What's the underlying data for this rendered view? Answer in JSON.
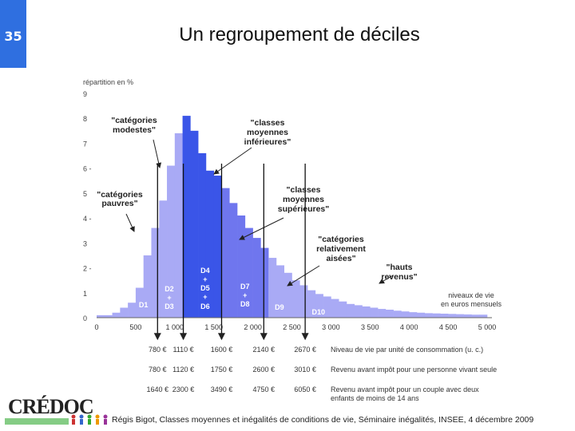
{
  "slide": {
    "number": "35",
    "title": "Un regroupement de déciles"
  },
  "footer": "Régis Bigot, Classes moyennes et inégalités de conditions de vie, Séminaire inégalités, INSEE, 4 décembre 2009",
  "logo": {
    "text": "CRÉDOC"
  },
  "colors": {
    "accent": "#2f6fe0",
    "light": "#a9aaf5",
    "dark": "#3a55e8",
    "mid": "#6f76ee"
  },
  "chart_data": {
    "type": "bar",
    "ylabel": "répartition en %",
    "xlabel": "niveaux de vie en euros mensuels",
    "xlim": [
      0,
      5000
    ],
    "ylim": [
      0,
      9
    ],
    "x_ticks": [
      "0",
      "500",
      "1 000",
      "1 500",
      "2 000",
      "2 500",
      "3 000",
      "3 500",
      "4 000",
      "4 500",
      "5 000"
    ],
    "y_ticks": [
      "0",
      "1",
      "2 -",
      "3",
      "4 -",
      "5",
      "6 -",
      "7",
      "8",
      "9"
    ],
    "bin_width": 100,
    "bins": [
      {
        "x": 0,
        "value": 0.1,
        "group": "light"
      },
      {
        "x": 100,
        "value": 0.1,
        "group": "light"
      },
      {
        "x": 200,
        "value": 0.2,
        "group": "light"
      },
      {
        "x": 300,
        "value": 0.4,
        "group": "light"
      },
      {
        "x": 400,
        "value": 0.6,
        "group": "light"
      },
      {
        "x": 500,
        "value": 1.2,
        "group": "light"
      },
      {
        "x": 600,
        "value": 2.5,
        "group": "light"
      },
      {
        "x": 700,
        "value": 3.6,
        "group": "light"
      },
      {
        "x": 800,
        "value": 4.7,
        "group": "light"
      },
      {
        "x": 900,
        "value": 6.1,
        "group": "light"
      },
      {
        "x": 1000,
        "value": 7.4,
        "group": "light"
      },
      {
        "x": 1100,
        "value": 8.1,
        "group": "dark"
      },
      {
        "x": 1200,
        "value": 7.5,
        "group": "dark"
      },
      {
        "x": 1300,
        "value": 6.6,
        "group": "dark"
      },
      {
        "x": 1400,
        "value": 5.9,
        "group": "dark"
      },
      {
        "x": 1500,
        "value": 5.7,
        "group": "dark"
      },
      {
        "x": 1600,
        "value": 5.2,
        "group": "mid"
      },
      {
        "x": 1700,
        "value": 4.6,
        "group": "mid"
      },
      {
        "x": 1800,
        "value": 4.1,
        "group": "mid"
      },
      {
        "x": 1900,
        "value": 3.6,
        "group": "mid"
      },
      {
        "x": 2000,
        "value": 3.2,
        "group": "mid"
      },
      {
        "x": 2100,
        "value": 2.8,
        "group": "mid"
      },
      {
        "x": 2200,
        "value": 2.4,
        "group": "light"
      },
      {
        "x": 2300,
        "value": 2.1,
        "group": "light"
      },
      {
        "x": 2400,
        "value": 1.8,
        "group": "light"
      },
      {
        "x": 2500,
        "value": 1.5,
        "group": "light"
      },
      {
        "x": 2600,
        "value": 1.3,
        "group": "light"
      },
      {
        "x": 2700,
        "value": 1.1,
        "group": "light"
      },
      {
        "x": 2800,
        "value": 0.95,
        "group": "light"
      },
      {
        "x": 2900,
        "value": 0.85,
        "group": "light"
      },
      {
        "x": 3000,
        "value": 0.75,
        "group": "light"
      },
      {
        "x": 3100,
        "value": 0.65,
        "group": "light"
      },
      {
        "x": 3200,
        "value": 0.55,
        "group": "light"
      },
      {
        "x": 3300,
        "value": 0.5,
        "group": "light"
      },
      {
        "x": 3400,
        "value": 0.45,
        "group": "light"
      },
      {
        "x": 3500,
        "value": 0.4,
        "group": "light"
      },
      {
        "x": 3600,
        "value": 0.35,
        "group": "light"
      },
      {
        "x": 3700,
        "value": 0.32,
        "group": "light"
      },
      {
        "x": 3800,
        "value": 0.28,
        "group": "light"
      },
      {
        "x": 3900,
        "value": 0.25,
        "group": "light"
      },
      {
        "x": 4000,
        "value": 0.22,
        "group": "light"
      },
      {
        "x": 4100,
        "value": 0.2,
        "group": "light"
      },
      {
        "x": 4200,
        "value": 0.18,
        "group": "light"
      },
      {
        "x": 4300,
        "value": 0.17,
        "group": "light"
      },
      {
        "x": 4400,
        "value": 0.16,
        "group": "light"
      },
      {
        "x": 4500,
        "value": 0.15,
        "group": "light"
      },
      {
        "x": 4600,
        "value": 0.14,
        "group": "light"
      },
      {
        "x": 4700,
        "value": 0.13,
        "group": "light"
      },
      {
        "x": 4800,
        "value": 0.12,
        "group": "light"
      },
      {
        "x": 4900,
        "value": 0.12,
        "group": "light"
      }
    ],
    "decile_labels": [
      {
        "lines": [
          "D1"
        ],
        "x": 620,
        "color": "#ffffff"
      },
      {
        "lines": [
          "D2",
          "+",
          "D3"
        ],
        "x": 930,
        "color": "#ffffff"
      },
      {
        "lines": [
          "D4",
          "+",
          "D5",
          "+",
          "D6"
        ],
        "x": 1390,
        "color": "#ffffff"
      },
      {
        "lines": [
          "D7",
          "+",
          "D8"
        ],
        "x": 1900,
        "color": "#ffffff"
      },
      {
        "lines": [
          "D9"
        ],
        "x": 2340,
        "color": "#ffffff"
      },
      {
        "lines": [
          "D10"
        ],
        "x": 2840,
        "color": "#ffffff"
      }
    ],
    "annotations": [
      {
        "lines": [
          "\"catégories",
          "pauvres\""
        ]
      },
      {
        "lines": [
          "\"catégories",
          "modestes\""
        ]
      },
      {
        "lines": [
          "\"classes",
          "moyennes",
          "inférieures\""
        ]
      },
      {
        "lines": [
          "\"classes",
          "moyennes",
          "supérieures\""
        ]
      },
      {
        "lines": [
          "\"catégories",
          "relativement",
          "aisées\""
        ]
      },
      {
        "lines": [
          "\"hauts",
          "revenus\""
        ]
      }
    ],
    "thresholds": [
      {
        "x": 780,
        "cut_values": [
          "780 €",
          "780 €",
          "1640 €"
        ]
      },
      {
        "x": 1110,
        "cut_values": [
          "1110 €",
          "1120 €",
          "2300 €"
        ]
      },
      {
        "x": 1600,
        "cut_values": [
          "1600 €",
          "1750 €",
          "3490 €"
        ]
      },
      {
        "x": 2140,
        "cut_values": [
          "2140 €",
          "2600 €",
          "4750 €"
        ]
      },
      {
        "x": 2670,
        "cut_values": [
          "2670 €",
          "3010 €",
          "6050 €"
        ]
      }
    ],
    "threshold_rows": [
      "Niveau de vie par unité de consommation (u. c.)",
      "Revenu avant impôt pour une personne vivant seule",
      "Revenu avant impôt pour un couple avec deux enfants de moins de 14 ans"
    ]
  }
}
